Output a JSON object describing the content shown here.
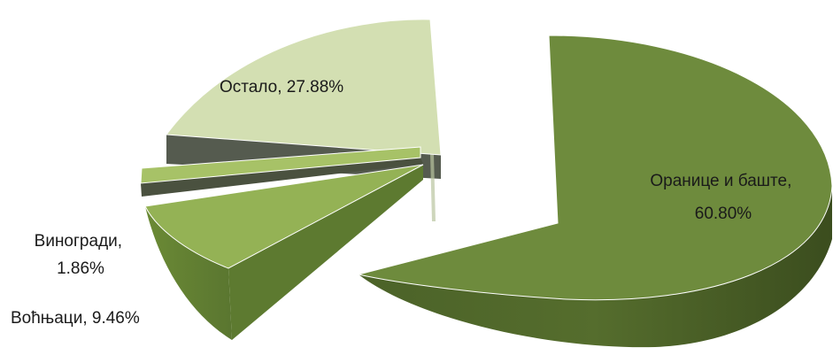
{
  "chart_data": {
    "type": "pie",
    "title": "",
    "style": "3d-exploded",
    "legend": "none",
    "slices": [
      {
        "label": "Оранице и баште",
        "value": 60.8,
        "display": "60.80%",
        "color": "#6e8b3d"
      },
      {
        "label": "Остало",
        "value": 27.88,
        "display": "27.88%",
        "color": "#d3dfb2"
      },
      {
        "label": "Виногради",
        "value": 1.86,
        "display": "1.86%",
        "color": "#a7c267"
      },
      {
        "label": "Воћњаци",
        "value": 9.46,
        "display": "9.46%",
        "color": "#94b255"
      }
    ]
  }
}
